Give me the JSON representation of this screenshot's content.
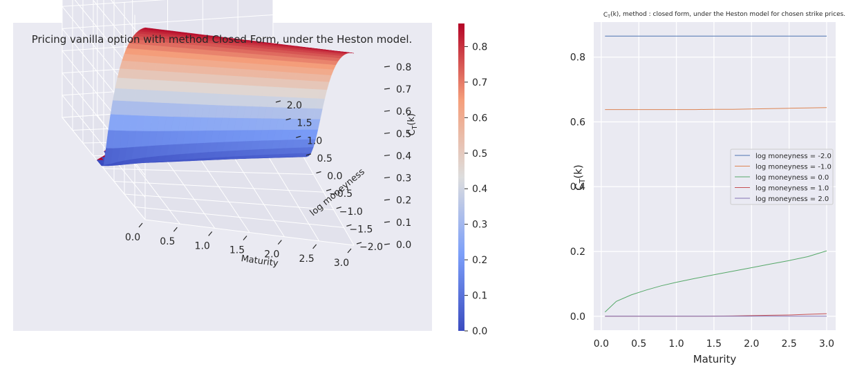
{
  "chart_data": [
    {
      "type": "surface",
      "title": "Pricing vanilla option with method Closed Form, under the Heston model.",
      "xlabel": "Maturity",
      "ylabel": "log moneyness",
      "zlabel": "C_T(k)",
      "x_ticks": [
        "0.0",
        "0.5",
        "1.0",
        "1.5",
        "2.0",
        "2.5",
        "3.0"
      ],
      "y_ticks": [
        "−2.0",
        "−1.5",
        "−1.0",
        "−0.5",
        "0.0",
        "0.5",
        "1.0",
        "1.5",
        "2.0"
      ],
      "z_ticks": [
        "0.0",
        "0.1",
        "0.2",
        "0.3",
        "0.4",
        "0.5",
        "0.6",
        "0.7",
        "0.8"
      ],
      "xlim": [
        0,
        3
      ],
      "ylim": [
        -2,
        2
      ],
      "zlim": [
        0,
        0.865
      ],
      "surface_samples": {
        "log_moneyness": [
          -2.0,
          -1.5,
          -1.0,
          -0.5,
          0.0,
          0.5,
          1.0,
          1.5,
          2.0
        ],
        "maturity_0": [
          0.865,
          0.78,
          0.64,
          0.4,
          0.01,
          0.0,
          0.0,
          0.0,
          0.0
        ],
        "maturity_3": [
          0.865,
          0.78,
          0.64,
          0.43,
          0.2,
          0.05,
          0.01,
          0.0,
          0.0
        ]
      },
      "colormap": "coolwarm",
      "grid": true
    },
    {
      "type": "colorbar",
      "ticks": [
        "0.0",
        "0.1",
        "0.2",
        "0.3",
        "0.4",
        "0.5",
        "0.6",
        "0.7",
        "0.8"
      ],
      "range": [
        0,
        0.865
      ],
      "colormap": "coolwarm"
    },
    {
      "type": "line",
      "title": "C_T(k), method : closed form, under the Heston model for chosen strike prices.",
      "xlabel": "Maturity",
      "ylabel": "C_T(k)",
      "xlim": [
        -0.1,
        3.12
      ],
      "ylim": [
        -0.043,
        0.908
      ],
      "x_ticks": [
        "0.0",
        "0.5",
        "1.0",
        "1.5",
        "2.0",
        "2.5",
        "3.0"
      ],
      "y_ticks": [
        "0.0",
        "0.2",
        "0.4",
        "0.6",
        "0.8"
      ],
      "x": [
        0.05,
        0.2,
        0.4,
        0.6,
        0.8,
        1.0,
        1.25,
        1.5,
        1.75,
        2.0,
        2.25,
        2.5,
        2.75,
        3.0
      ],
      "series": [
        {
          "name": "log moneyness = -2.0",
          "color": "#4c72b0",
          "values": [
            0.865,
            0.865,
            0.865,
            0.865,
            0.865,
            0.865,
            0.865,
            0.865,
            0.865,
            0.865,
            0.865,
            0.865,
            0.865,
            0.865
          ]
        },
        {
          "name": "log moneyness = -1.0",
          "color": "#dd8452",
          "values": [
            0.638,
            0.638,
            0.638,
            0.638,
            0.638,
            0.638,
            0.638,
            0.639,
            0.639,
            0.64,
            0.641,
            0.642,
            0.643,
            0.644
          ]
        },
        {
          "name": "log moneyness = 0.0",
          "color": "#55a868",
          "values": [
            0.013,
            0.046,
            0.066,
            0.081,
            0.094,
            0.105,
            0.117,
            0.128,
            0.139,
            0.15,
            0.161,
            0.172,
            0.184,
            0.202
          ]
        },
        {
          "name": "log moneyness = 1.0",
          "color": "#c44e52",
          "values": [
            0.0,
            0.0,
            0.0,
            0.0,
            0.0,
            0.0,
            0.0,
            0.0005,
            0.001,
            0.002,
            0.003,
            0.004,
            0.006,
            0.008
          ]
        },
        {
          "name": "log moneyness = 2.0",
          "color": "#8172b3",
          "values": [
            0.0,
            0.0,
            0.0,
            0.0,
            0.0,
            0.0,
            0.0,
            0.0,
            0.0,
            0.0,
            0.0,
            0.0,
            0.0,
            0.0
          ]
        }
      ],
      "legend": "center-right",
      "grid": true
    }
  ]
}
